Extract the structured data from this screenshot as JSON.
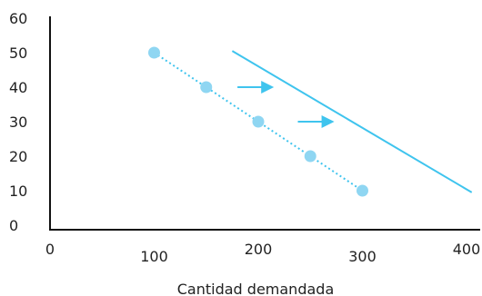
{
  "chart_data": {
    "type": "line",
    "xlabel": "Cantidad demandada",
    "ylabel": "",
    "xlim": [
      0,
      400
    ],
    "ylim": [
      0,
      60
    ],
    "x_ticks": [
      "0",
      "100",
      "200",
      "300",
      "400"
    ],
    "y_ticks": [
      "60",
      "50",
      "40",
      "30",
      "20",
      "10",
      "0"
    ],
    "grid": false,
    "series": [
      {
        "style": "dotted-with-markers",
        "color": "#8fd6f2",
        "x": [
          100,
          150,
          200,
          250,
          300
        ],
        "y": [
          50,
          40,
          30,
          20,
          10
        ]
      },
      {
        "style": "solid",
        "color": "#3fc4ee",
        "x": [
          175,
          405
        ],
        "y": [
          50.5,
          9.5
        ]
      }
    ],
    "arrows": [
      {
        "direction": "right",
        "from": [
          180,
          40
        ],
        "to": [
          215,
          40
        ],
        "color": "#3fc4ee"
      },
      {
        "direction": "right",
        "from": [
          238,
          30
        ],
        "to": [
          273,
          30
        ],
        "color": "#3fc4ee"
      }
    ],
    "colors": {
      "axis": "#111111",
      "text": "#222222"
    }
  }
}
